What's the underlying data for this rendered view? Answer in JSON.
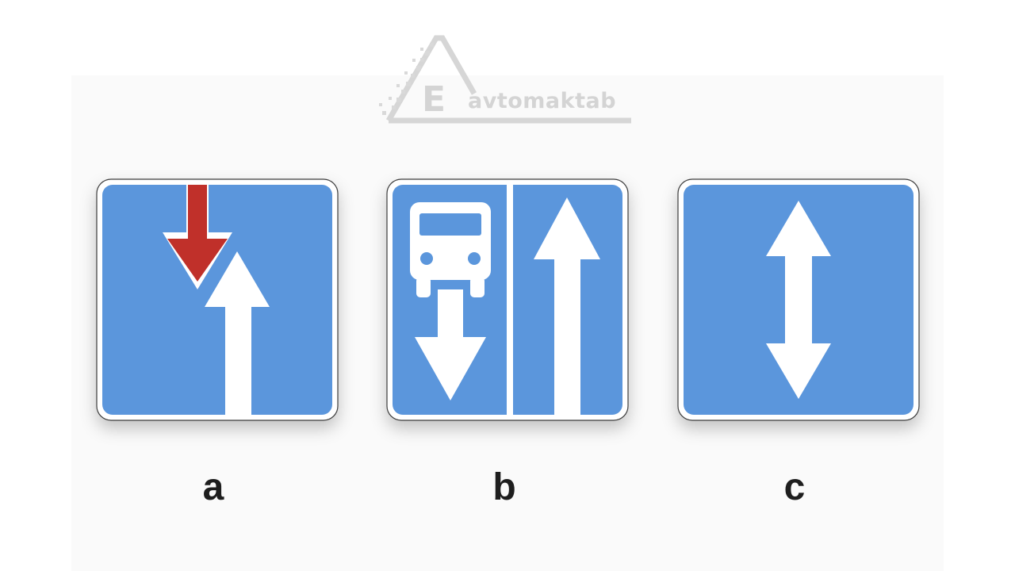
{
  "watermark": {
    "letter": "E",
    "text": "avtomaktab",
    "color": "#d4d4d4"
  },
  "signs": [
    {
      "label": "a",
      "icon": "oncoming-traffic-priority-icon"
    },
    {
      "label": "b",
      "icon": "bus-lane-reverse-icon"
    },
    {
      "label": "c",
      "icon": "two-way-traffic-icon"
    }
  ],
  "colors": {
    "sign_blue": "#5b96dc",
    "sign_border": "#ffffff",
    "arrow_white": "#ffffff",
    "arrow_red": "#c0302a",
    "caption": "#1e1e1e"
  }
}
